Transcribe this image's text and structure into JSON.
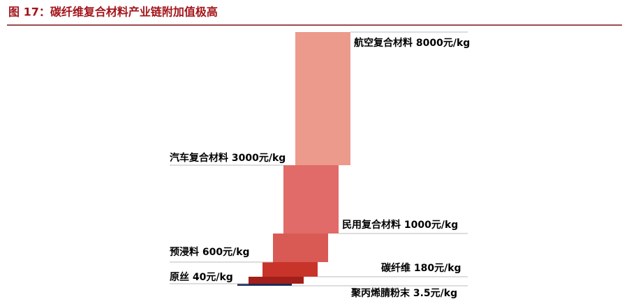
{
  "title": "图 17：碳纤维复合材料产业链附加值极高",
  "labels": [
    "航空复合材料 8000元/kg",
    "汽车复合材料 3000元/kg",
    "民用复合材料 1000元/kg",
    "预浸料 600元/kg",
    "碳纤维 180元/kg",
    "原丝 40元/kg",
    "聚丙烯腈粉末 3.5元/kg"
  ]
}
